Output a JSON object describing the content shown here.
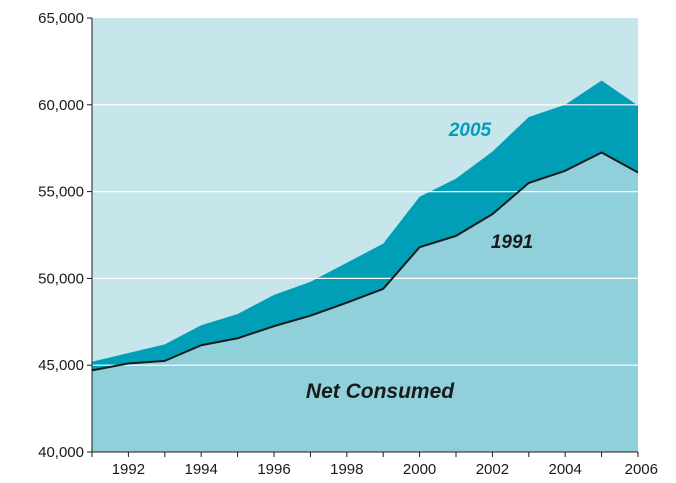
{
  "chart_data": {
    "type": "area",
    "x": [
      1991,
      1992,
      1993,
      1994,
      1995,
      1996,
      1997,
      1998,
      1999,
      2000,
      2001,
      2002,
      2003,
      2004,
      2005,
      2006
    ],
    "series": [
      {
        "name": "2005",
        "values": [
          45200,
          45700,
          46200,
          47300,
          47950,
          49050,
          49800,
          50900,
          52000,
          54700,
          55750,
          57300,
          59300,
          60000,
          61400,
          59950
        ]
      },
      {
        "name": "1991",
        "values": [
          44700,
          45100,
          45250,
          46150,
          46550,
          47250,
          47850,
          48600,
          49400,
          51800,
          52450,
          53700,
          55500,
          56200,
          57250,
          56100
        ]
      }
    ],
    "area_label": "Net Consumed",
    "ylim": [
      40000,
      65000
    ],
    "xlim": [
      1991,
      2006
    ],
    "y_ticks": [
      "40,000",
      "45,000",
      "50,000",
      "55,000",
      "60,000",
      "65,000"
    ],
    "x_ticks": [
      "1992",
      "1994",
      "1996",
      "1998",
      "2000",
      "2002",
      "2004",
      "2006"
    ],
    "grid": true,
    "colors": {
      "plot_background": "#c6e6ec",
      "band_2005": "#009fb7",
      "area_net_consumed": "#8fd0da",
      "line_1991": "#1a1a1a",
      "label_2005": "#009fb7",
      "label_1991": "#1a1a1a",
      "label_net": "#1a1a1a",
      "gridline": "#ffffff",
      "axis": "#1a1a1a"
    }
  }
}
